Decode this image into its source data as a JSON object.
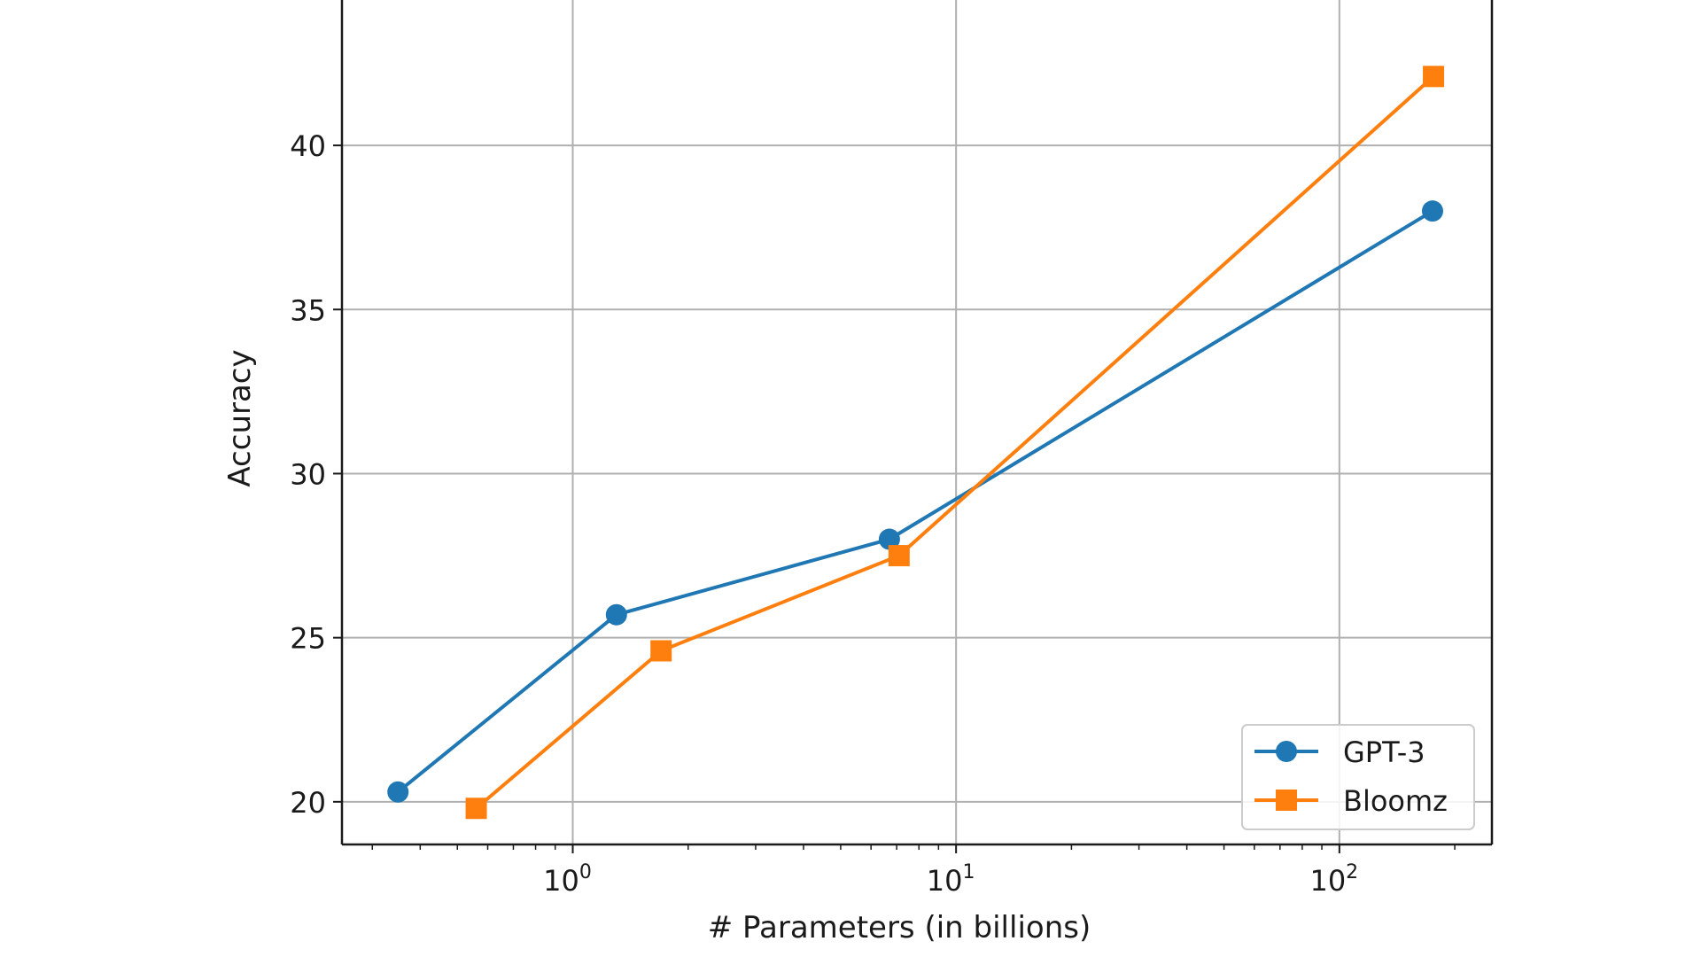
{
  "chart_data": {
    "type": "line",
    "title": "",
    "xlabel": "# Parameters (in billions)",
    "ylabel": "Accuracy",
    "x_scale": "log",
    "xlim": [
      0.25,
      250
    ],
    "ylim": [
      18.7,
      44.7
    ],
    "x_ticks": [
      {
        "value": 1,
        "base": "10",
        "exp": "0"
      },
      {
        "value": 10,
        "base": "10",
        "exp": "1"
      },
      {
        "value": 100,
        "base": "10",
        "exp": "2"
      }
    ],
    "y_ticks": [
      {
        "value": 20,
        "label": "20"
      },
      {
        "value": 25,
        "label": "25"
      },
      {
        "value": 30,
        "label": "30"
      },
      {
        "value": 35,
        "label": "35"
      },
      {
        "value": 40,
        "label": "40"
      }
    ],
    "grid": true,
    "legend_position": "bottom-right",
    "series": [
      {
        "name": "GPT-3",
        "color": "#1f77b4",
        "marker": "circle",
        "x": [
          0.35,
          1.3,
          6.7,
          175
        ],
        "y": [
          20.3,
          25.7,
          28.0,
          38.0
        ]
      },
      {
        "name": "Bloomz",
        "color": "#ff7f0e",
        "marker": "square",
        "x": [
          0.56,
          1.7,
          7.1,
          176
        ],
        "y": [
          19.8,
          24.6,
          27.5,
          42.1
        ]
      }
    ]
  }
}
